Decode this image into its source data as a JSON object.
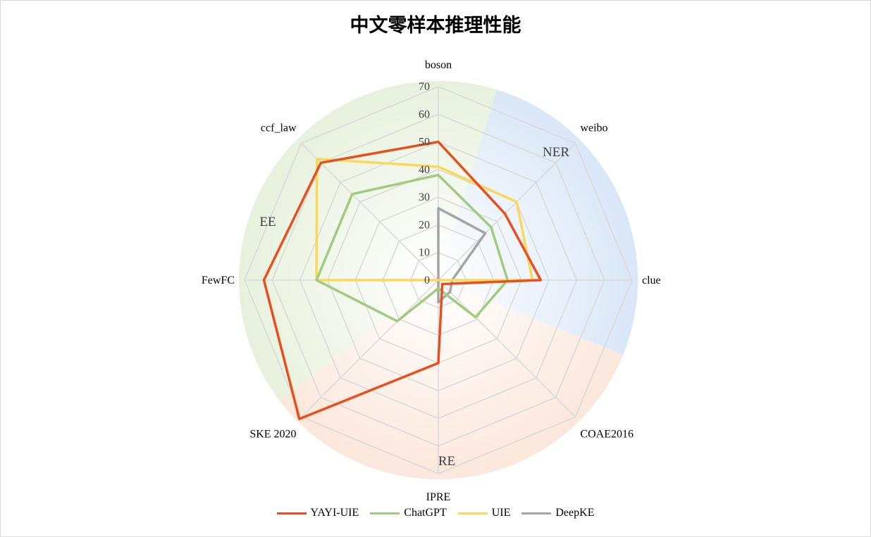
{
  "chart_data": {
    "type": "radar",
    "title": "中文零样本推理性能",
    "categories": [
      "boson",
      "weibo",
      "clue",
      "COAE2016",
      "IPRE",
      "SKE 2020",
      "FewFC",
      "ccf_law"
    ],
    "rlim": [
      0,
      70
    ],
    "ticks": [
      0,
      10,
      20,
      30,
      40,
      50,
      60,
      70
    ],
    "groups": [
      {
        "label": "NER",
        "color": "#dde9f7",
        "categories": [
          "boson",
          "weibo",
          "clue"
        ]
      },
      {
        "label": "RE",
        "color": "#fbe5d8",
        "categories": [
          "COAE2016",
          "IPRE",
          "SKE 2020"
        ]
      },
      {
        "label": "EE",
        "color": "#e6f0da",
        "categories": [
          "FewFC",
          "ccf_law"
        ]
      }
    ],
    "series": [
      {
        "name": "YAYI-UIE",
        "color": "#e94f1d",
        "values": [
          50,
          34,
          37,
          2,
          30,
          71,
          63,
          60
        ]
      },
      {
        "name": "ChatGPT",
        "color": "#9fcc7e",
        "values": [
          38,
          27,
          25,
          19,
          3,
          21,
          44,
          44
        ]
      },
      {
        "name": "UIE",
        "color": "#fbd85c",
        "values": [
          41,
          40,
          34,
          0,
          0,
          0,
          44,
          62
        ]
      },
      {
        "name": "DeepKE",
        "color": "#a5a5a5",
        "values": [
          26,
          24,
          5,
          6,
          8,
          0,
          0,
          0
        ]
      }
    ]
  }
}
